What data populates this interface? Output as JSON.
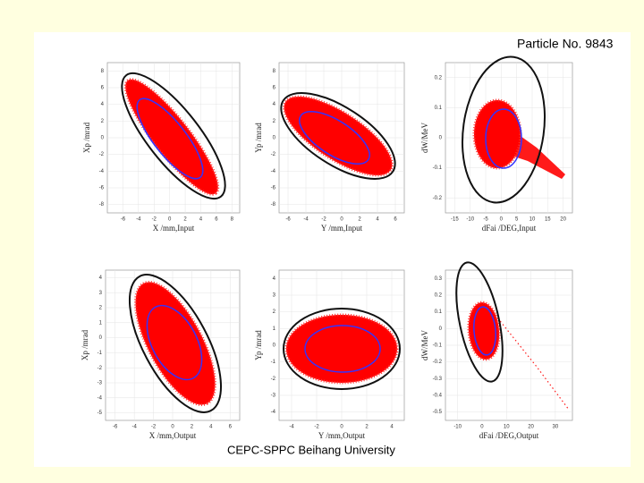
{
  "title": "Particle No. 9843",
  "footer": "CEPC-SPPC Beihang University",
  "chart_data": [
    {
      "type": "scatter",
      "x_label": "X /mm,Input",
      "y_label": "Xp /mrad",
      "xlim": [
        -8,
        9
      ],
      "ylim": [
        -9,
        9
      ],
      "xticks": [
        -6,
        -4,
        -2,
        0,
        2,
        4,
        6,
        8
      ],
      "yticks": [
        -8,
        -6,
        -4,
        -2,
        0,
        2,
        4,
        6,
        8
      ]
    },
    {
      "type": "scatter",
      "x_label": "Y /mm,Input",
      "y_label": "Yp /mrad",
      "xlim": [
        -7,
        7
      ],
      "ylim": [
        -9,
        9
      ],
      "xticks": [
        -6,
        -4,
        -2,
        0,
        2,
        4,
        6
      ],
      "yticks": [
        -8,
        -6,
        -4,
        -2,
        0,
        2,
        4,
        6,
        8
      ]
    },
    {
      "type": "scatter",
      "x_label": "dFai /DEG,Input",
      "y_label": "dW/MeV",
      "xlim": [
        -18,
        23
      ],
      "ylim": [
        -0.25,
        0.25
      ],
      "xticks": [
        -15,
        -10,
        -5,
        0,
        5,
        10,
        15,
        20
      ],
      "yticks": [
        -0.2,
        -0.1,
        0,
        0.1,
        0.2
      ]
    },
    {
      "type": "scatter",
      "x_label": "X /mm,Output",
      "y_label": "Xp /mrad",
      "xlim": [
        -7,
        7
      ],
      "ylim": [
        -5.5,
        4.5
      ],
      "xticks": [
        -6,
        -4,
        -2,
        0,
        2,
        4,
        6
      ],
      "yticks": [
        -5,
        -4,
        -3,
        -2,
        -1,
        0,
        1,
        2,
        3,
        4
      ]
    },
    {
      "type": "scatter",
      "x_label": "Y /mm,Output",
      "y_label": "Yp /mrad",
      "xlim": [
        -5,
        5
      ],
      "ylim": [
        -4.5,
        4.5
      ],
      "xticks": [
        -4,
        -2,
        0,
        2,
        4
      ],
      "yticks": [
        -4,
        -3,
        -2,
        -1,
        0,
        1,
        2,
        3,
        4
      ]
    },
    {
      "type": "scatter",
      "x_label": "dFai /DEG,Output",
      "y_label": "dW/MeV",
      "xlim": [
        -15,
        37
      ],
      "ylim": [
        -0.55,
        0.35
      ],
      "xticks": [
        -10,
        0,
        10,
        20,
        30
      ],
      "yticks": [
        -0.5,
        -0.4,
        -0.3,
        -0.2,
        -0.1,
        0,
        0.1,
        0.2,
        0.3
      ]
    }
  ]
}
